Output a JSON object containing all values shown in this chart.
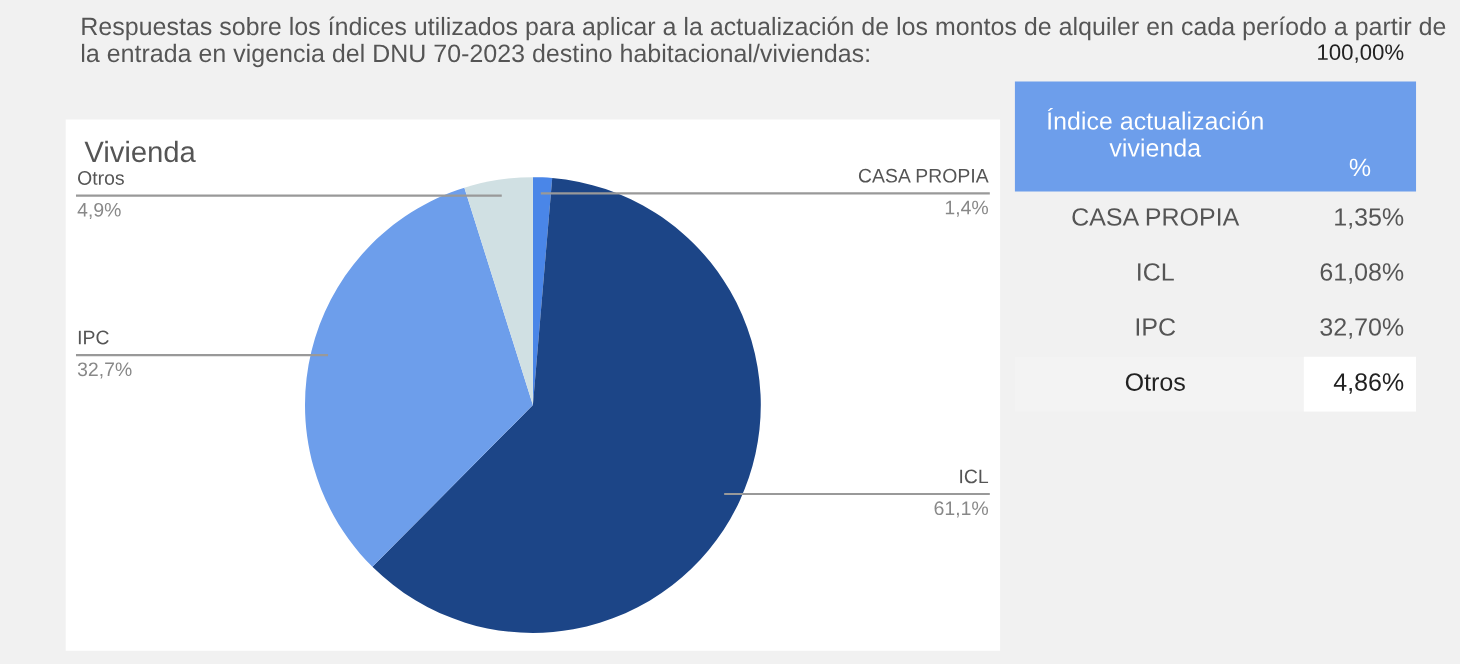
{
  "chart_data": [
    {
      "type": "pie",
      "title": "Vivienda",
      "annotations": [
        "Respuestas sobre los índices utilizados para aplicar a la actualización de los montos de alquiler en cada período a partir de la entrada en vigencia del DNU 70-2023 destino habitacional/viviendas:"
      ],
      "categories": [
        "CASA PROPIA",
        "ICL",
        "IPC",
        "Otros"
      ],
      "values": [
        1.35,
        61.08,
        32.7,
        4.86
      ],
      "value_labels": [
        "1,4%",
        "61,1%",
        "32,7%",
        "4,9%"
      ],
      "colors": [
        "#4a86e8",
        "#1c4587",
        "#6d9eeb",
        "#d0e0e3"
      ]
    },
    {
      "type": "other",
      "xlabel": "Índice actualización vivienda",
      "ylabel": "%",
      "annotations": [
        "100,00%"
      ],
      "categories": [
        "CASA PROPIA",
        "ICL",
        "IPC",
        "Otros"
      ],
      "values": [
        1.35,
        61.08,
        32.7,
        4.86
      ],
      "value_labels": [
        "1,35%",
        "61,08%",
        "32,70%",
        "4,86%"
      ]
    }
  ]
}
